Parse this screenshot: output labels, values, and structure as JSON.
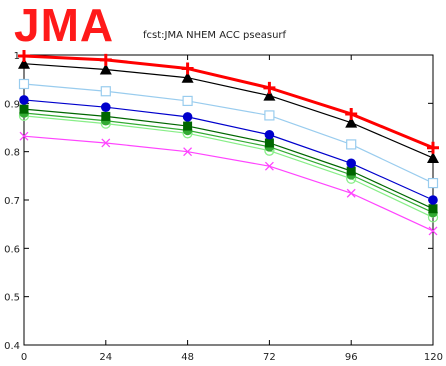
{
  "brand": {
    "text": "JMA",
    "color": "#ff1a1a"
  },
  "chart_data": {
    "type": "line",
    "title": "fcst:JMA NHEM ACC pseasurf",
    "xlabel": "",
    "ylabel": "",
    "x": [
      0,
      24,
      48,
      72,
      96,
      120
    ],
    "xticks": [
      "0",
      "24",
      "48",
      "72",
      "96",
      "120"
    ],
    "ylim": [
      0.4,
      1.0
    ],
    "yticks": [
      "0.4",
      "0.5",
      "0.6",
      "0.7",
      "0.8",
      "0.9",
      "1"
    ],
    "grid": false,
    "series": [
      {
        "values": [
          0.998,
          0.99,
          0.972,
          0.932,
          0.878,
          0.808
        ],
        "color": "#ff0000",
        "marker": "plus",
        "bold": true
      },
      {
        "values": [
          0.982,
          0.97,
          0.953,
          0.916,
          0.86,
          0.787
        ],
        "color": "#000000",
        "marker": "triangle"
      },
      {
        "values": [
          0.94,
          0.925,
          0.905,
          0.875,
          0.815,
          0.735
        ],
        "color": "#99ccee",
        "marker": "square-open"
      },
      {
        "values": [
          0.907,
          0.892,
          0.872,
          0.835,
          0.776,
          0.7
        ],
        "color": "#0000cc",
        "marker": "circle"
      },
      {
        "values": [
          0.888,
          0.873,
          0.853,
          0.818,
          0.76,
          0.682
        ],
        "color": "#006600",
        "marker": "square"
      },
      {
        "values": [
          0.88,
          0.864,
          0.844,
          0.81,
          0.752,
          0.674
        ],
        "color": "#33aa33",
        "marker": "circle"
      },
      {
        "values": [
          0.874,
          0.858,
          0.838,
          0.802,
          0.744,
          0.664
        ],
        "color": "#88ee88",
        "marker": "circle-open"
      },
      {
        "values": [
          0.832,
          0.818,
          0.8,
          0.77,
          0.714,
          0.636
        ],
        "color": "#ff44ff",
        "marker": "x"
      }
    ]
  }
}
